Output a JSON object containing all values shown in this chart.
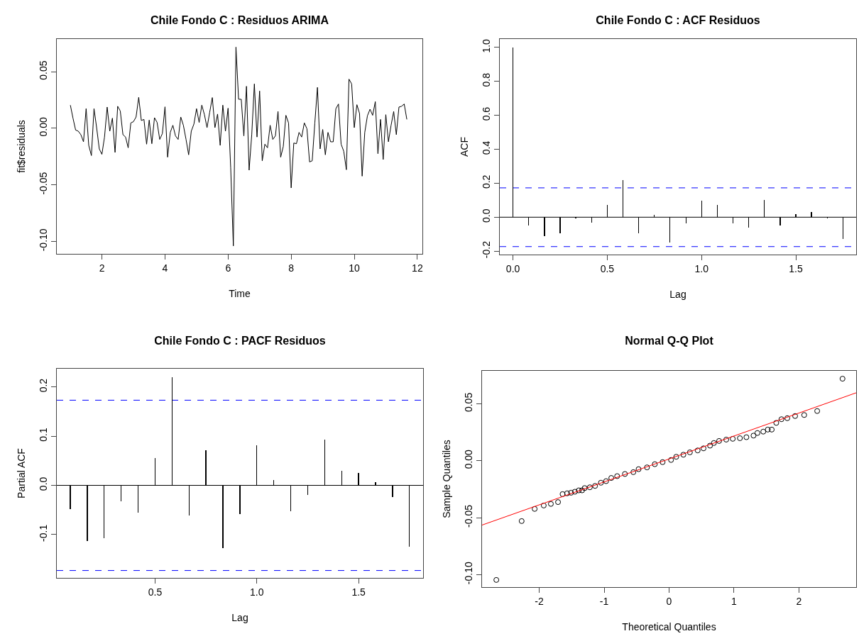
{
  "chart_data": [
    {
      "type": "line",
      "title": "Chile Fondo C : Residuos ARIMA",
      "xlabel": "Time",
      "ylabel": "fit$residuals",
      "grid": false,
      "legend": false,
      "xlim": [
        0.57,
        12.16
      ],
      "ylim": [
        -0.111,
        0.079
      ],
      "xticks": [
        2,
        4,
        6,
        8,
        10,
        12
      ],
      "yticks": [
        {
          "value": -0.1,
          "label": "-0.10"
        },
        {
          "value": -0.05,
          "label": "-0.05"
        },
        {
          "value": 0,
          "label": "0.00"
        },
        {
          "value": 0.05,
          "label": "0.05"
        }
      ],
      "x": [
        1,
        1.083,
        1.167,
        1.25,
        1.333,
        1.417,
        1.5,
        1.583,
        1.667,
        1.75,
        1.833,
        1.917,
        2,
        2.083,
        2.167,
        2.25,
        2.333,
        2.417,
        2.5,
        2.583,
        2.667,
        2.75,
        2.833,
        2.917,
        3,
        3.083,
        3.167,
        3.25,
        3.333,
        3.417,
        3.5,
        3.583,
        3.667,
        3.75,
        3.833,
        3.917,
        4,
        4.083,
        4.167,
        4.25,
        4.333,
        4.417,
        4.5,
        4.583,
        4.667,
        4.75,
        4.833,
        4.917,
        5,
        5.083,
        5.167,
        5.25,
        5.333,
        5.417,
        5.5,
        5.583,
        5.667,
        5.75,
        5.833,
        5.917,
        6,
        6.083,
        6.167,
        6.25,
        6.333,
        6.417,
        6.5,
        6.583,
        6.667,
        6.75,
        6.833,
        6.917,
        7,
        7.083,
        7.167,
        7.25,
        7.333,
        7.417,
        7.5,
        7.583,
        7.667,
        7.75,
        7.833,
        7.917,
        8,
        8.083,
        8.167,
        8.25,
        8.333,
        8.417,
        8.5,
        8.583,
        8.667,
        8.75,
        8.833,
        8.917,
        9,
        9.083,
        9.167,
        9.25,
        9.333,
        9.417,
        9.5,
        9.583,
        9.667,
        9.75,
        9.833,
        9.917,
        10,
        10.083,
        10.167,
        10.25,
        10.333,
        10.417,
        10.5,
        10.583,
        10.667,
        10.75,
        10.833,
        10.917,
        11,
        11.083,
        11.167,
        11.25,
        11.333,
        11.417,
        11.5,
        11.583,
        11.667
      ],
      "series": [
        {
          "color": "#000000",
          "values": [
            0.0205,
            0.009,
            -0.0015,
            -0.0025,
            -0.0056,
            -0.0119,
            0.0174,
            -0.0151,
            -0.0241,
            0.0174,
            0.0006,
            -0.0182,
            -0.023,
            -0.0077,
            0.0188,
            -0.0025,
            0.009,
            -0.0213,
            0.0195,
            0.0153,
            -0.0056,
            -0.0077,
            -0.0172,
            0.0048,
            0.0059,
            0.01,
            0.0274,
            0.0069,
            0.0079,
            -0.014,
            0.0073,
            -0.0136,
            0.0094,
            0.0052,
            -0.0098,
            -0.0046,
            0.019,
            -0.0255,
            -0.0036,
            0.0027,
            -0.0067,
            -0.0098,
            0.01,
            0.0027,
            -0.0098,
            -0.0234,
            -0.0025,
            0.0038,
            0.0174,
            0.0052,
            0.0205,
            0.0121,
            0.0006,
            0.0142,
            0.0272,
            0.0006,
            0.0126,
            -0.0151,
            0.0205,
            -0.0025,
            0.0178,
            -0.035,
            -0.104,
            0.0718,
            0.0257,
            0.0257,
            -0.0067,
            0.0372,
            -0.037,
            -0.0056,
            0.0393,
            -0.0077,
            0.033,
            -0.0287,
            -0.014,
            -0.0172,
            0.0027,
            -0.0098,
            -0.0067,
            0.0149,
            -0.0255,
            -0.0161,
            0.0115,
            0.0048,
            -0.0527,
            -0.013,
            -0.0136,
            -0.0036,
            -0.0077,
            0.0048,
            -0.0004,
            -0.0297,
            -0.0287,
            0.0048,
            0.0362,
            -0.0182,
            -0.001,
            -0.0234,
            -0.0036,
            -0.0119,
            -0.0119,
            0.0174,
            0.0215,
            -0.014,
            -0.0203,
            -0.0366,
            0.0435,
            0.0393,
            0.0006,
            0.0209,
            0.0132,
            -0.0423,
            -0.0036,
            0.0111,
            0.0169,
            0.0115,
            0.0236,
            -0.0224,
            0.0079,
            -0.0276,
            0.0121,
            -0.0119,
            0.0027,
            0.0149,
            -0.0056,
            0.0188,
            0.0195,
            0.0215,
            0.0079
          ]
        }
      ]
    },
    {
      "type": "bar",
      "title": "Chile Fondo C : ACF Residuos",
      "xlabel": "Lag",
      "ylabel": "ACF",
      "grid": false,
      "legend": false,
      "xlim": [
        -0.07,
        1.82
      ],
      "ylim": [
        -0.22,
        1.05
      ],
      "xticks": [
        {
          "value": 0,
          "label": "0.0"
        },
        {
          "value": 0.5,
          "label": "0.5"
        },
        {
          "value": 1,
          "label": "1.0"
        },
        {
          "value": 1.5,
          "label": "1.5"
        }
      ],
      "yticks": [
        {
          "value": -0.2,
          "label": "-0.2"
        },
        {
          "value": 0,
          "label": "0.0"
        },
        {
          "value": 0.2,
          "label": "0.2"
        },
        {
          "value": 0.4,
          "label": "0.4"
        },
        {
          "value": 0.6,
          "label": "0.6"
        },
        {
          "value": 0.8,
          "label": "0.8"
        },
        {
          "value": 1,
          "label": "1.0"
        }
      ],
      "x": [
        0,
        0.083,
        0.167,
        0.25,
        0.333,
        0.417,
        0.5,
        0.583,
        0.667,
        0.75,
        0.833,
        0.917,
        1,
        1.083,
        1.167,
        1.25,
        1.333,
        1.417,
        1.5,
        1.583,
        1.667,
        1.75
      ],
      "series": [
        {
          "color": "#000000",
          "values": [
            1,
            -0.05,
            -0.111,
            -0.096,
            -0.009,
            -0.03,
            0.073,
            0.22,
            -0.096,
            0.015,
            -0.147,
            -0.038,
            0.097,
            0.071,
            -0.035,
            -0.062,
            0.1,
            -0.047,
            0.02,
            0.03,
            -0.009,
            -0.13
          ]
        }
      ],
      "ref_lines": [
        {
          "axis": "y",
          "value": 0,
          "color": "#000000",
          "line_style": "solid"
        },
        {
          "axis": "y",
          "value": 0.173,
          "color": "#0000ff",
          "line_style": "dashed"
        },
        {
          "axis": "y",
          "value": -0.173,
          "color": "#0000ff",
          "line_style": "dashed"
        }
      ]
    },
    {
      "type": "bar",
      "title": "Chile Fondo C : PACF Residuos",
      "xlabel": "Lag",
      "ylabel": "Partial ACF",
      "grid": false,
      "legend": false,
      "xlim": [
        0.017,
        1.817
      ],
      "ylim": [
        -0.188,
        0.237
      ],
      "xticks": [
        {
          "value": 0.5,
          "label": "0.5"
        },
        {
          "value": 1,
          "label": "1.0"
        },
        {
          "value": 1.5,
          "label": "1.5"
        }
      ],
      "yticks": [
        {
          "value": -0.1,
          "label": "-0.1"
        },
        {
          "value": 0,
          "label": "0.0"
        },
        {
          "value": 0.1,
          "label": "0.1"
        },
        {
          "value": 0.2,
          "label": "0.2"
        }
      ],
      "x": [
        0.083,
        0.167,
        0.25,
        0.333,
        0.417,
        0.5,
        0.583,
        0.667,
        0.75,
        0.833,
        0.917,
        1,
        1.083,
        1.167,
        1.25,
        1.333,
        1.417,
        1.5,
        1.583,
        1.667,
        1.75
      ],
      "series": [
        {
          "color": "#000000",
          "values": [
            -0.048,
            -0.113,
            -0.108,
            -0.032,
            -0.056,
            0.055,
            0.22,
            -0.061,
            0.071,
            -0.128,
            -0.059,
            0.081,
            0.011,
            -0.052,
            -0.02,
            0.093,
            0.03,
            0.025,
            0.006,
            -0.024,
            -0.124
          ]
        }
      ],
      "ref_lines": [
        {
          "axis": "y",
          "value": 0,
          "color": "#000000",
          "line_style": "solid"
        },
        {
          "axis": "y",
          "value": 0.173,
          "color": "#0000ff",
          "line_style": "dashed"
        },
        {
          "axis": "y",
          "value": -0.173,
          "color": "#0000ff",
          "line_style": "dashed"
        }
      ]
    },
    {
      "type": "scatter",
      "title": "Normal Q-Q Plot",
      "xlabel": "Theoretical Quantiles",
      "ylabel": "Sample Quantiles",
      "grid": false,
      "legend": false,
      "xlim": [
        -2.88,
        2.88
      ],
      "ylim": [
        -0.111,
        0.079
      ],
      "xticks": [
        -2,
        -1,
        0,
        1,
        2
      ],
      "yticks": [
        {
          "value": -0.1,
          "label": "-0.10"
        },
        {
          "value": -0.05,
          "label": "-0.05"
        },
        {
          "value": 0,
          "label": "0.00"
        },
        {
          "value": 0.05,
          "label": "0.05"
        }
      ],
      "series": [
        {
          "marker": "circle",
          "color": "#000000",
          "x": [
            -2.66,
            -2.27,
            -2.07,
            -1.93,
            -1.82,
            -1.71,
            -1.64,
            -1.57,
            -1.51,
            -1.45,
            -1.39,
            -1.34,
            -1.3,
            -1.22,
            -1.14,
            -1.05,
            -0.97,
            -0.89,
            -0.8,
            -0.68,
            -0.55,
            -0.47,
            -0.34,
            -0.22,
            -0.1,
            0.03,
            0.11,
            0.22,
            0.32,
            0.44,
            0.53,
            0.63,
            0.69,
            0.77,
            0.88,
            0.98,
            1.09,
            1.19,
            1.3,
            1.36,
            1.45,
            1.52,
            1.58,
            1.65,
            1.73,
            1.82,
            1.94,
            2.08,
            2.28,
            2.67
          ],
          "values": [
            -0.1047,
            -0.053,
            -0.0423,
            -0.0393,
            -0.0379,
            -0.0363,
            -0.0293,
            -0.0286,
            -0.0281,
            -0.0272,
            -0.026,
            -0.026,
            -0.024,
            -0.0233,
            -0.0221,
            -0.0193,
            -0.0179,
            -0.0151,
            -0.0135,
            -0.0116,
            -0.01,
            -0.0074,
            -0.0058,
            -0.003,
            -0.0012,
            0.0007,
            0.0035,
            0.0053,
            0.0074,
            0.0091,
            0.0109,
            0.0133,
            0.0156,
            0.0174,
            0.0186,
            0.0193,
            0.0198,
            0.0207,
            0.0221,
            0.0244,
            0.0256,
            0.0274,
            0.0274,
            0.0333,
            0.0365,
            0.0374,
            0.0393,
            0.0402,
            0.0437,
            0.0721
          ]
        },
        {
          "type": "line",
          "marker": "none",
          "color": "#ff0000",
          "x": [
            -2.88,
            2.88
          ],
          "values": [
            -0.0565,
            0.0597
          ]
        }
      ]
    }
  ]
}
